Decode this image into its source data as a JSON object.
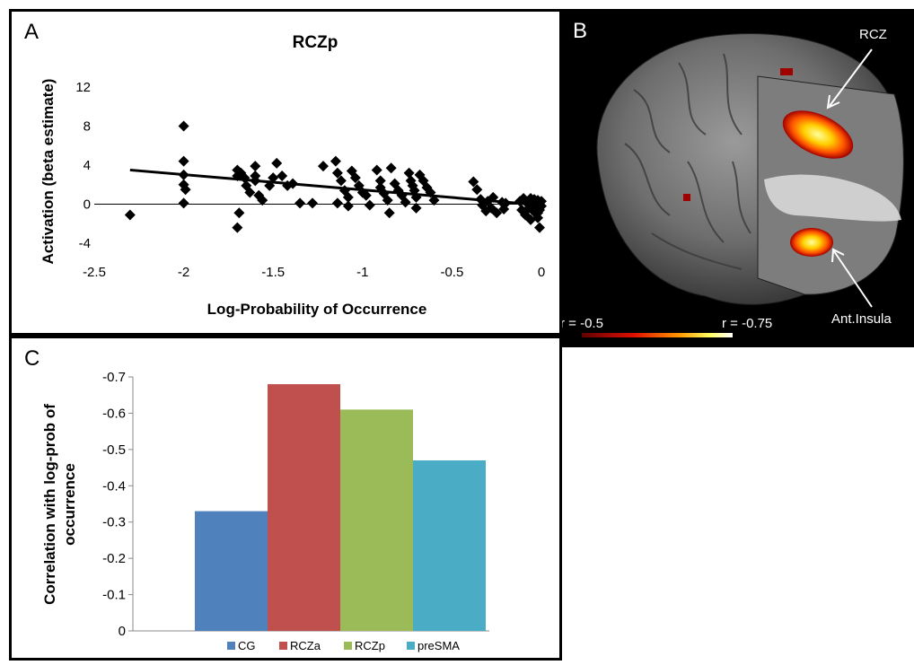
{
  "panel_a": {
    "letter": "A",
    "chart_data": {
      "type": "scatter",
      "title": "RCZp",
      "xlabel": "Log-Probability of Occurrence",
      "ylabel": "Activation (beta estimate)",
      "xlim": [
        -2.5,
        0
      ],
      "ylim": [
        -4,
        12
      ],
      "x_ticks": [
        "-2.5",
        "-2",
        "-1.5",
        "-1",
        "-0.5",
        "0"
      ],
      "y_ticks": [
        "-4",
        "0",
        "4",
        "8",
        "12"
      ],
      "trend_line": {
        "x": [
          -2.3,
          0
        ],
        "y": [
          3.5,
          -0.1
        ]
      },
      "points": [
        [
          -2.3,
          -1.1
        ],
        [
          -2,
          8
        ],
        [
          -2,
          4.4
        ],
        [
          -2,
          3
        ],
        [
          -2,
          2
        ],
        [
          -1.99,
          1.5
        ],
        [
          -2,
          0.1
        ],
        [
          -1.7,
          3.5
        ],
        [
          -1.7,
          2.9
        ],
        [
          -1.68,
          3.2
        ],
        [
          -1.66,
          2.7
        ],
        [
          -1.65,
          1.9
        ],
        [
          -1.63,
          1.2
        ],
        [
          -1.7,
          -2.4
        ],
        [
          -1.69,
          -0.9
        ],
        [
          -1.6,
          3.9
        ],
        [
          -1.6,
          2.9
        ],
        [
          -1.6,
          2.4
        ],
        [
          -1.58,
          0.9
        ],
        [
          -1.56,
          0.4
        ],
        [
          -1.52,
          1.9
        ],
        [
          -1.5,
          2.7
        ],
        [
          -1.48,
          4.2
        ],
        [
          -1.45,
          2.9
        ],
        [
          -1.42,
          1.9
        ],
        [
          -1.39,
          2.1
        ],
        [
          -1.35,
          0.1
        ],
        [
          -1.28,
          0.1
        ],
        [
          -1.22,
          3.9
        ],
        [
          -1.15,
          4.4
        ],
        [
          -1.14,
          3.2
        ],
        [
          -1.12,
          2.4
        ],
        [
          -1.1,
          1.4
        ],
        [
          -1.08,
          0.7
        ],
        [
          -1.14,
          0.1
        ],
        [
          -1.08,
          -0.2
        ],
        [
          -1.06,
          3.4
        ],
        [
          -1.04,
          2.7
        ],
        [
          -1.02,
          1.9
        ],
        [
          -1.0,
          1.2
        ],
        [
          -0.98,
          0.9
        ],
        [
          -0.96,
          -0.1
        ],
        [
          -0.92,
          3.5
        ],
        [
          -0.9,
          2.4
        ],
        [
          -0.9,
          1.7
        ],
        [
          -0.88,
          1.1
        ],
        [
          -0.86,
          0.4
        ],
        [
          -0.85,
          -0.9
        ],
        [
          -0.84,
          3.7
        ],
        [
          -0.82,
          2.1
        ],
        [
          -0.8,
          1.4
        ],
        [
          -0.78,
          0.9
        ],
        [
          -0.76,
          0.2
        ],
        [
          -0.74,
          3.2
        ],
        [
          -0.73,
          2.4
        ],
        [
          -0.72,
          1.9
        ],
        [
          -0.71,
          1.4
        ],
        [
          -0.7,
          0.7
        ],
        [
          -0.7,
          -0.4
        ],
        [
          -0.68,
          3.0
        ],
        [
          -0.66,
          2.4
        ],
        [
          -0.64,
          1.7
        ],
        [
          -0.62,
          1.2
        ],
        [
          -0.6,
          0.4
        ],
        [
          -0.38,
          2.3
        ],
        [
          -0.36,
          1.5
        ],
        [
          -0.34,
          0.5
        ],
        [
          -0.33,
          -0.1
        ],
        [
          -0.31,
          -0.7
        ],
        [
          -0.3,
          0.3
        ],
        [
          -0.28,
          -0.4
        ],
        [
          -0.27,
          0.7
        ],
        [
          -0.25,
          -0.9
        ],
        [
          -0.22,
          0.2
        ],
        [
          -0.21,
          -0.5
        ],
        [
          -0.2,
          0.1
        ],
        [
          -0.12,
          0.3
        ],
        [
          -0.11,
          -0.6
        ],
        [
          -0.1,
          0.6
        ],
        [
          -0.09,
          -1.1
        ],
        [
          -0.08,
          0.1
        ],
        [
          -0.07,
          -0.4
        ],
        [
          -0.06,
          0.6
        ],
        [
          -0.06,
          -1.6
        ],
        [
          -0.05,
          -0.1
        ],
        [
          -0.05,
          0.3
        ],
        [
          -0.04,
          -0.8
        ],
        [
          -0.04,
          0.5
        ],
        [
          -0.03,
          -0.3
        ],
        [
          -0.03,
          0.1
        ],
        [
          -0.02,
          -1.4
        ],
        [
          -0.02,
          0.4
        ],
        [
          -0.01,
          -0.6
        ],
        [
          -0.01,
          0.2
        ],
        [
          -0.01,
          -2.4
        ],
        [
          0,
          -0.2
        ],
        [
          0,
          0.3
        ],
        [
          -0.02,
          -0.9
        ]
      ]
    }
  },
  "panel_b": {
    "letter": "B",
    "label_rcz": "RCZ",
    "label_insula": "Ant.Insula",
    "colorbar_left": "r = -0.5",
    "colorbar_right": "r = -0.75"
  },
  "panel_c": {
    "letter": "C",
    "chart_data": {
      "type": "bar",
      "ylabel": "Correlation with log-prob of occurrence",
      "ylabel_lines": [
        "Correlation with log-prob of",
        "occurrence"
      ],
      "categories": [
        "CG",
        "RCZa",
        "RCZp",
        "preSMA"
      ],
      "values": [
        -0.33,
        -0.68,
        -0.61,
        -0.47
      ],
      "colors": [
        "#4f81bd",
        "#c0504d",
        "#9bbb59",
        "#4bacc6"
      ],
      "ylim": [
        0,
        -0.7
      ],
      "y_ticks": [
        "-0.7",
        "-0.6",
        "-0.5",
        "-0.4",
        "-0.3",
        "-0.2",
        "-0.1",
        "0"
      ],
      "legend_position": "bottom"
    }
  }
}
